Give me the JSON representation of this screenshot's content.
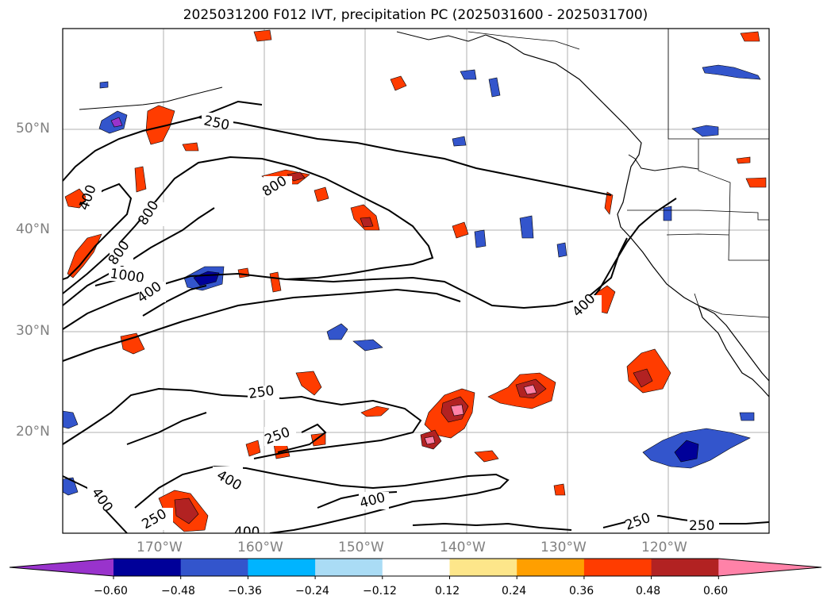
{
  "title": "2025031200 F012 IVT, precipitation PC (2025031600 - 2025031700)",
  "lat_labels": [
    "50°N",
    "40°N",
    "30°N",
    "20°N"
  ],
  "lon_labels": [
    "170°W",
    "160°W",
    "150°W",
    "140°W",
    "130°W",
    "120°W"
  ],
  "contour_labels": {
    "c1": "250",
    "c2": "400",
    "c3": "800",
    "c4": "800",
    "c5": "800",
    "c6": "1000",
    "c7": "400",
    "c8": "400",
    "c9": "250",
    "c10": "250",
    "c11": "400",
    "c12": "400",
    "c13": "250",
    "c14": "400",
    "c15": "400",
    "c16": "250",
    "c17": "250"
  },
  "colorbar": {
    "ticks": [
      "−0.60",
      "−0.48",
      "−0.36",
      "−0.24",
      "−0.12",
      "0.12",
      "0.24",
      "0.36",
      "0.48",
      "0.60"
    ],
    "colors": [
      "#9933cc",
      "#000099",
      "#3355cc",
      "#00b4ff",
      "#aadcf5",
      "#ffffff",
      "#fde68a",
      "#ff9f00",
      "#ff3c00",
      "#b22222",
      "#ff82a8"
    ]
  }
}
